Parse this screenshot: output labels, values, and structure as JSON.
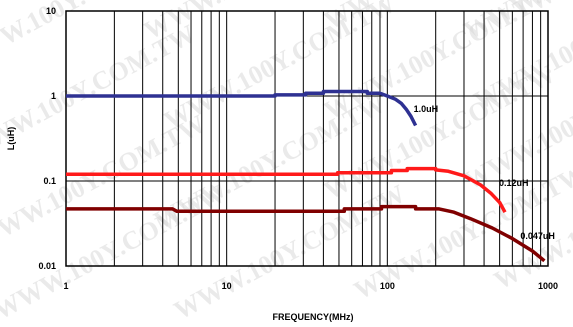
{
  "chart_data": {
    "type": "line",
    "xlabel": "FREQUENCY(MHz)",
    "ylabel": "L(uH)",
    "xscale": "log",
    "yscale": "log",
    "xlim": [
      1,
      1000
    ],
    "ylim": [
      0.01,
      10
    ],
    "grid": true,
    "x_tick_labels": [
      "1",
      "10",
      "100",
      "1000"
    ],
    "y_tick_labels": [
      "0.01",
      "0.1",
      "1",
      "10"
    ],
    "watermark": "WWW.100Y.COM.TW",
    "series": [
      {
        "name": "1.0uH",
        "color": "#2e3192",
        "points": [
          [
            1,
            1.0
          ],
          [
            20,
            1.0
          ],
          [
            20,
            1.03
          ],
          [
            31,
            1.03
          ],
          [
            31,
            1.08
          ],
          [
            40,
            1.08
          ],
          [
            40,
            1.13
          ],
          [
            75,
            1.13
          ],
          [
            75,
            1.08
          ],
          [
            90,
            1.08
          ],
          [
            100,
            1.0
          ],
          [
            112,
            0.92
          ],
          [
            122,
            0.82
          ],
          [
            131,
            0.7
          ],
          [
            140,
            0.58
          ],
          [
            150,
            0.45
          ]
        ]
      },
      {
        "name": "0.12uH",
        "color": "#ff1a1a",
        "points": [
          [
            1,
            0.12
          ],
          [
            49,
            0.12
          ],
          [
            49,
            0.125
          ],
          [
            106,
            0.125
          ],
          [
            106,
            0.133
          ],
          [
            133,
            0.133
          ],
          [
            133,
            0.14
          ],
          [
            200,
            0.14
          ],
          [
            200,
            0.135
          ],
          [
            240,
            0.13
          ],
          [
            300,
            0.115
          ],
          [
            380,
            0.09
          ],
          [
            440,
            0.072
          ],
          [
            500,
            0.056
          ],
          [
            540,
            0.043
          ]
        ]
      },
      {
        "name": "0.047uH",
        "color": "#800000",
        "points": [
          [
            1,
            0.047
          ],
          [
            4.6,
            0.047
          ],
          [
            4.9,
            0.044
          ],
          [
            54,
            0.044
          ],
          [
            54,
            0.047
          ],
          [
            92,
            0.047
          ],
          [
            92,
            0.05
          ],
          [
            150,
            0.05
          ],
          [
            150,
            0.047
          ],
          [
            210,
            0.047
          ],
          [
            260,
            0.043
          ],
          [
            330,
            0.036
          ],
          [
            450,
            0.028
          ],
          [
            600,
            0.021
          ],
          [
            800,
            0.015
          ],
          [
            950,
            0.0115
          ]
        ]
      }
    ]
  }
}
